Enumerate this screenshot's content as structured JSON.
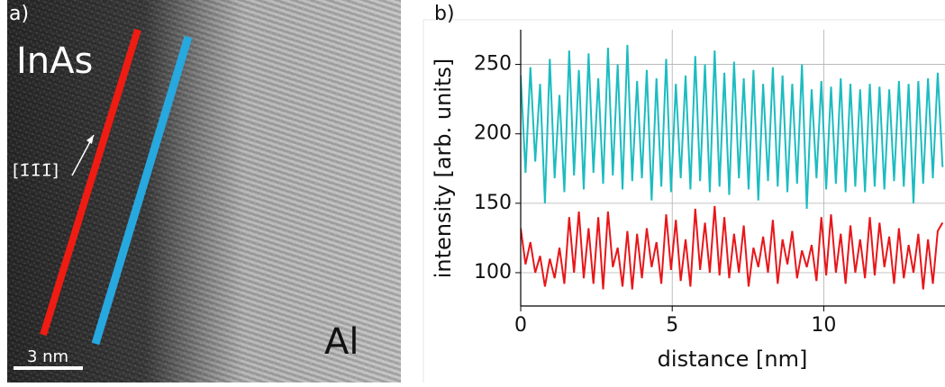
{
  "image_panel": {
    "label": "a)",
    "material_left": "InAs",
    "material_right": "Al",
    "direction": "[1̄1̄1̄]",
    "scale_bar": "3 nm"
  },
  "chart_data": {
    "type": "line",
    "panel_label": "b)",
    "xlabel": "distance [nm]",
    "ylabel": "intensity [arb. units]",
    "x": [
      0,
      0.16,
      0.32,
      0.48,
      0.64,
      0.8,
      0.96,
      1.12,
      1.28,
      1.44,
      1.6,
      1.76,
      1.92,
      2.08,
      2.24,
      2.4,
      2.56,
      2.72,
      2.88,
      3.04,
      3.2,
      3.36,
      3.52,
      3.68,
      3.84,
      4,
      4.16,
      4.32,
      4.48,
      4.64,
      4.8,
      4.96,
      5.12,
      5.28,
      5.44,
      5.6,
      5.76,
      5.92,
      6.08,
      6.24,
      6.4,
      6.56,
      6.72,
      6.88,
      7.04,
      7.2,
      7.36,
      7.52,
      7.68,
      7.84,
      8,
      8.16,
      8.32,
      8.48,
      8.64,
      8.8,
      8.96,
      9.12,
      9.28,
      9.44,
      9.6,
      9.76,
      9.92,
      10.08,
      10.24,
      10.4,
      10.56,
      10.72,
      10.88,
      11.04,
      11.2,
      11.36,
      11.52,
      11.68,
      11.84,
      12,
      12.16,
      12.32,
      12.48,
      12.64,
      12.8,
      12.96,
      13.12,
      13.28,
      13.44,
      13.6,
      13.76,
      13.92
    ],
    "series": [
      {
        "color": "#1cbcc0",
        "values": [
          242,
          172,
          248,
          180,
          236,
          150,
          254,
          168,
          228,
          158,
          260,
          170,
          246,
          160,
          258,
          172,
          240,
          164,
          262,
          170,
          250,
          160,
          264,
          166,
          238,
          168,
          246,
          152,
          240,
          162,
          254,
          158,
          236,
          168,
          242,
          160,
          256,
          166,
          250,
          158,
          260,
          162,
          244,
          156,
          252,
          168,
          240,
          160,
          246,
          152,
          236,
          166,
          248,
          162,
          242,
          158,
          236,
          164,
          250,
          146,
          232,
          168,
          238,
          160,
          234,
          164,
          240,
          158,
          236,
          162,
          232,
          158,
          236,
          162,
          234,
          160,
          232,
          166,
          238,
          162,
          236,
          150,
          238,
          164,
          240,
          168,
          244,
          176
        ]
      },
      {
        "color": "#e8161a",
        "values": [
          132,
          106,
          122,
          100,
          112,
          90,
          110,
          96,
          118,
          92,
          140,
          100,
          144,
          96,
          132,
          92,
          140,
          88,
          144,
          104,
          118,
          90,
          130,
          88,
          128,
          96,
          132,
          104,
          122,
          92,
          142,
          102,
          138,
          94,
          124,
          90,
          146,
          102,
          136,
          100,
          148,
          98,
          140,
          96,
          128,
          100,
          134,
          90,
          118,
          104,
          126,
          100,
          138,
          92,
          124,
          106,
          130,
          96,
          116,
          104,
          120,
          94,
          140,
          98,
          142,
          100,
          128,
          92,
          134,
          100,
          124,
          96,
          140,
          98,
          136,
          104,
          126,
          92,
          132,
          96,
          120,
          100,
          128,
          88,
          124,
          92,
          130,
          136
        ]
      }
    ],
    "xlim": [
      0,
      14
    ],
    "ylim": [
      76,
      275
    ],
    "xticks": [
      0,
      5,
      10
    ],
    "yticks": [
      100,
      150,
      200,
      250
    ],
    "grid": true
  }
}
